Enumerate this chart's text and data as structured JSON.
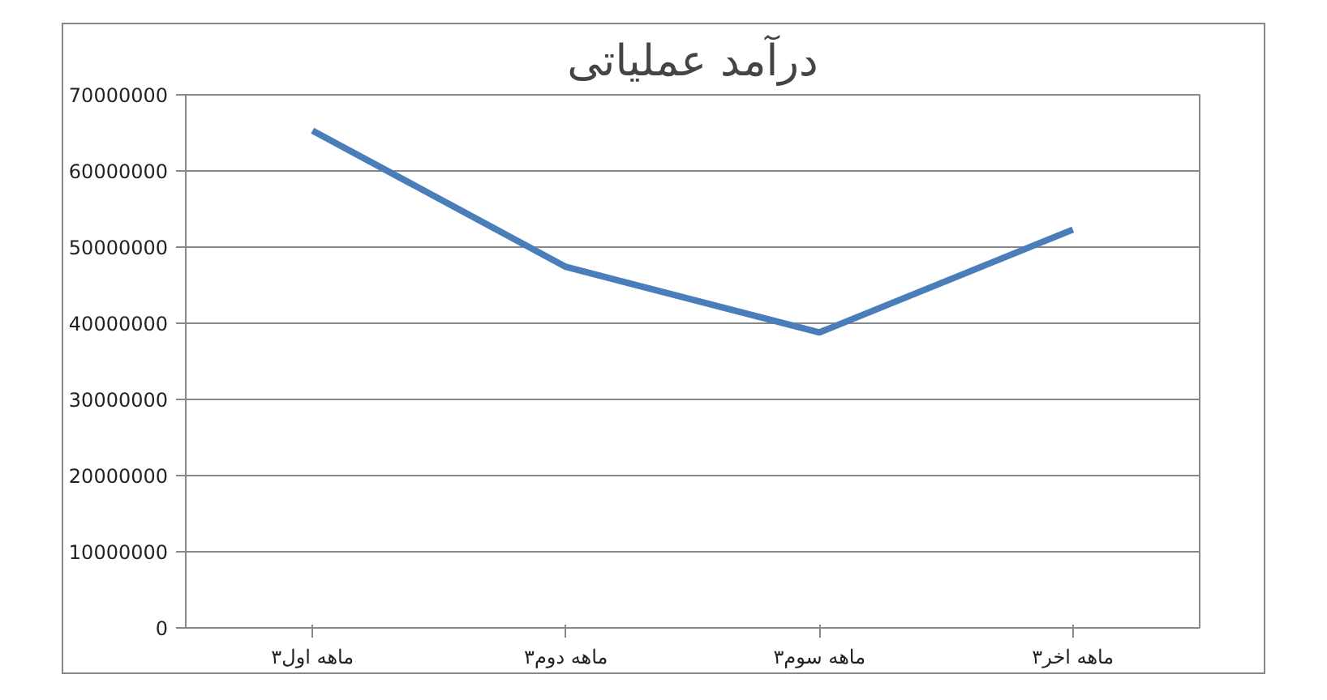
{
  "chart_data": {
    "type": "line",
    "title": "درآمد عملیاتی",
    "categories": [
      "۳ماهه اول",
      "۳ماهه دوم",
      "۳ماهه سوم",
      "۳ماهه اخر"
    ],
    "series": [
      {
        "color": "#4a7ebb",
        "values": [
          65300000,
          47400000,
          38800000,
          52300000
        ]
      }
    ],
    "ylim": [
      0,
      70000000
    ],
    "yticks": [
      0,
      10000000,
      20000000,
      30000000,
      40000000,
      50000000,
      60000000,
      70000000
    ],
    "grid": "y",
    "marker": "none",
    "line_style": "solid"
  }
}
